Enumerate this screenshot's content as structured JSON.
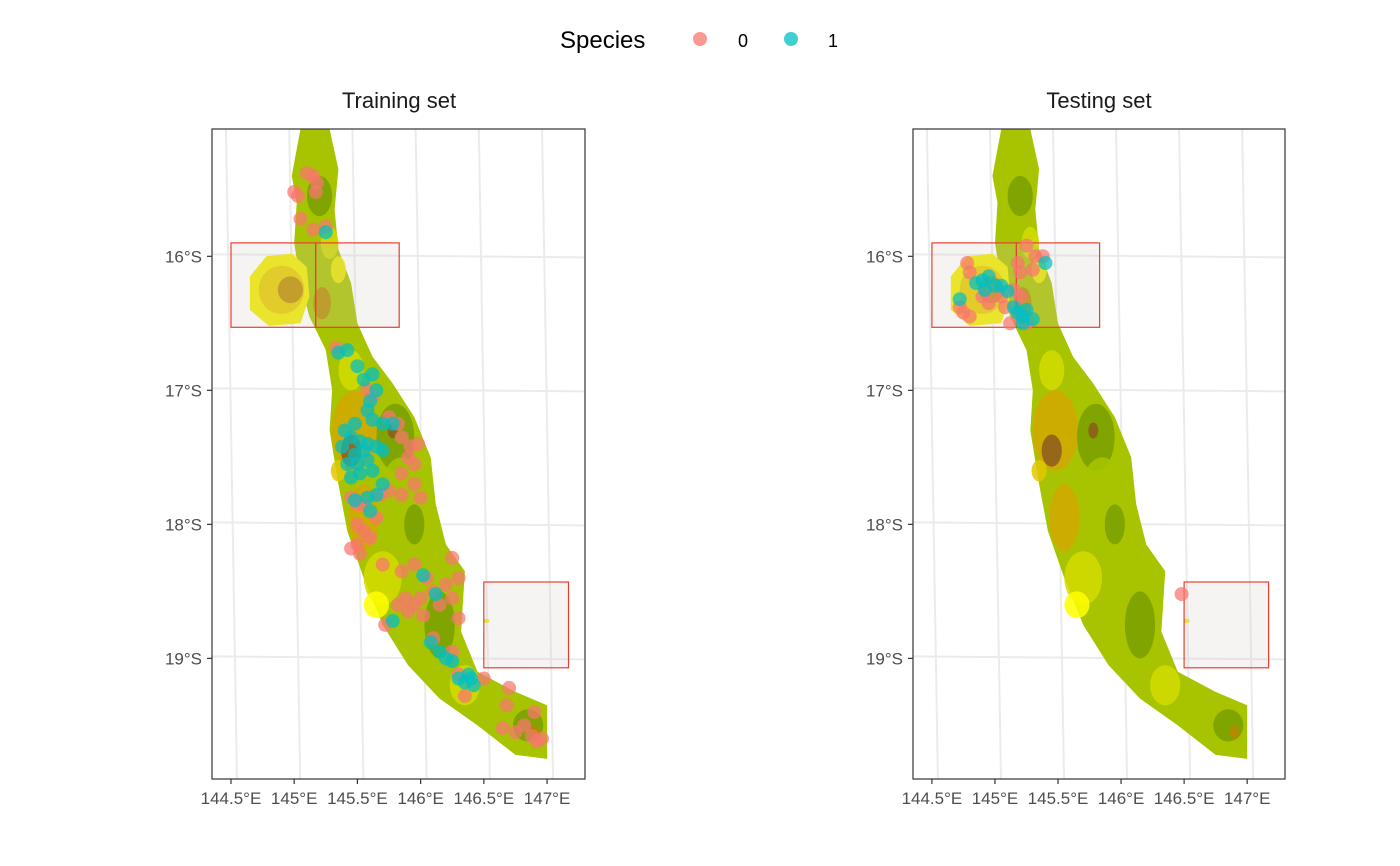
{
  "legend": {
    "title": "Species",
    "placement": "top-center",
    "items": [
      {
        "label": "0",
        "color": "#F8766D"
      },
      {
        "label": "1",
        "color": "#00BFC4"
      }
    ]
  },
  "terrain_colors": [
    "#7aa000",
    "#a8c400",
    "#d4dc00",
    "#f0ec00",
    "#ffff00",
    "#e2c800",
    "#d4a800",
    "#b88800",
    "#8c5a20"
  ],
  "chart_data": [
    {
      "type": "scatter",
      "title": "Training set",
      "x_ticks": [
        "144.5°E",
        "145°E",
        "145.5°E",
        "146°E",
        "146.5°E",
        "147°E"
      ],
      "x_tick_values": [
        144.5,
        145,
        145.5,
        146,
        146.5,
        147
      ],
      "y_ticks": [
        "16°S",
        "17°S",
        "18°S",
        "19°S"
      ],
      "y_tick_values": [
        -16,
        -17,
        -18,
        -19
      ],
      "xlim": [
        144.35,
        147.3
      ],
      "ylim": [
        -19.9,
        -15.05
      ],
      "grid": true,
      "blocks": [
        {
          "lon": [
            144.5,
            145.17
          ],
          "lat": [
            -16.53,
            -15.9
          ]
        },
        {
          "lon": [
            145.17,
            145.83
          ],
          "lat": [
            -16.53,
            -15.9
          ]
        },
        {
          "lon": [
            146.5,
            147.17
          ],
          "lat": [
            -19.07,
            -18.43
          ]
        }
      ],
      "series": [
        {
          "name": "0",
          "points": [
            [
              145.0,
              -15.52
            ],
            [
              145.03,
              -15.55
            ],
            [
              145.1,
              -15.38
            ],
            [
              145.15,
              -15.4
            ],
            [
              145.18,
              -15.45
            ],
            [
              145.17,
              -15.52
            ],
            [
              145.05,
              -15.72
            ],
            [
              145.15,
              -15.8
            ],
            [
              145.25,
              -15.78
            ],
            [
              145.33,
              -16.68
            ],
            [
              145.58,
              -17.0
            ],
            [
              145.62,
              -17.05
            ],
            [
              145.75,
              -17.2
            ],
            [
              145.82,
              -17.25
            ],
            [
              145.85,
              -17.35
            ],
            [
              145.92,
              -17.42
            ],
            [
              145.98,
              -17.4
            ],
            [
              145.9,
              -17.5
            ],
            [
              145.95,
              -17.55
            ],
            [
              145.85,
              -17.62
            ],
            [
              145.95,
              -17.7
            ],
            [
              146.0,
              -17.8
            ],
            [
              145.85,
              -17.78
            ],
            [
              145.75,
              -17.75
            ],
            [
              145.68,
              -17.78
            ],
            [
              145.5,
              -17.85
            ],
            [
              145.5,
              -18.0
            ],
            [
              145.55,
              -18.05
            ],
            [
              145.6,
              -18.1
            ],
            [
              145.5,
              -18.15
            ],
            [
              145.45,
              -18.18
            ],
            [
              145.52,
              -18.22
            ],
            [
              145.7,
              -18.3
            ],
            [
              145.85,
              -18.35
            ],
            [
              145.95,
              -18.3
            ],
            [
              146.05,
              -18.4
            ],
            [
              146.1,
              -18.5
            ],
            [
              146.0,
              -18.55
            ],
            [
              145.95,
              -18.6
            ],
            [
              145.88,
              -18.55
            ],
            [
              145.82,
              -18.6
            ],
            [
              145.9,
              -18.65
            ],
            [
              146.02,
              -18.68
            ],
            [
              146.15,
              -18.6
            ],
            [
              146.2,
              -18.45
            ],
            [
              146.25,
              -18.25
            ],
            [
              146.3,
              -18.4
            ],
            [
              146.25,
              -18.55
            ],
            [
              146.3,
              -18.7
            ],
            [
              145.72,
              -18.75
            ],
            [
              146.1,
              -18.85
            ],
            [
              146.25,
              -18.95
            ],
            [
              146.3,
              -19.12
            ],
            [
              146.35,
              -19.28
            ],
            [
              146.5,
              -19.15
            ],
            [
              146.7,
              -19.22
            ],
            [
              146.68,
              -19.35
            ],
            [
              146.65,
              -19.52
            ],
            [
              146.75,
              -19.55
            ],
            [
              146.82,
              -19.5
            ],
            [
              146.88,
              -19.58
            ],
            [
              146.92,
              -19.62
            ],
            [
              146.96,
              -19.6
            ],
            [
              146.9,
              -19.4
            ],
            [
              145.55,
              -17.85
            ],
            [
              145.65,
              -17.95
            ],
            [
              145.45,
              -17.8
            ]
          ]
        },
        {
          "name": "1",
          "points": [
            [
              145.25,
              -15.82
            ],
            [
              145.42,
              -16.7
            ],
            [
              145.35,
              -16.72
            ],
            [
              145.5,
              -16.82
            ],
            [
              145.55,
              -16.92
            ],
            [
              145.62,
              -16.88
            ],
            [
              145.65,
              -17.0
            ],
            [
              145.6,
              -17.08
            ],
            [
              145.58,
              -17.15
            ],
            [
              145.62,
              -17.22
            ],
            [
              145.7,
              -17.25
            ],
            [
              145.78,
              -17.25
            ],
            [
              145.48,
              -17.25
            ],
            [
              145.4,
              -17.3
            ],
            [
              145.45,
              -17.35
            ],
            [
              145.52,
              -17.38
            ],
            [
              145.58,
              -17.4
            ],
            [
              145.65,
              -17.42
            ],
            [
              145.7,
              -17.45
            ],
            [
              145.55,
              -17.45
            ],
            [
              145.48,
              -17.48
            ],
            [
              145.42,
              -17.55
            ],
            [
              145.5,
              -17.55
            ],
            [
              145.58,
              -17.52
            ],
            [
              145.62,
              -17.6
            ],
            [
              145.52,
              -17.62
            ],
            [
              145.45,
              -17.65
            ],
            [
              145.7,
              -17.7
            ],
            [
              145.65,
              -17.78
            ],
            [
              145.58,
              -17.8
            ],
            [
              145.6,
              -17.9
            ],
            [
              145.48,
              -17.82
            ],
            [
              145.38,
              -17.42
            ],
            [
              146.02,
              -18.38
            ],
            [
              146.12,
              -18.52
            ],
            [
              145.78,
              -18.72
            ],
            [
              146.08,
              -18.88
            ],
            [
              146.15,
              -18.95
            ],
            [
              146.2,
              -19.0
            ],
            [
              146.25,
              -19.02
            ],
            [
              146.3,
              -19.15
            ],
            [
              146.35,
              -19.18
            ],
            [
              146.42,
              -19.2
            ],
            [
              146.38,
              -19.12
            ],
            [
              146.4,
              -19.15
            ]
          ]
        }
      ]
    },
    {
      "type": "scatter",
      "title": "Testing set",
      "x_ticks": [
        "144.5°E",
        "145°E",
        "145.5°E",
        "146°E",
        "146.5°E",
        "147°E"
      ],
      "x_tick_values": [
        144.5,
        145,
        145.5,
        146,
        146.5,
        147
      ],
      "y_ticks": [
        "16°S",
        "17°S",
        "18°S",
        "19°S"
      ],
      "y_tick_values": [
        -16,
        -17,
        -18,
        -19
      ],
      "xlim": [
        144.35,
        147.3
      ],
      "ylim": [
        -19.9,
        -15.05
      ],
      "grid": true,
      "blocks": [
        {
          "lon": [
            144.5,
            145.17
          ],
          "lat": [
            -16.53,
            -15.9
          ]
        },
        {
          "lon": [
            145.17,
            145.83
          ],
          "lat": [
            -16.53,
            -15.9
          ]
        },
        {
          "lon": [
            146.5,
            147.17
          ],
          "lat": [
            -19.07,
            -18.43
          ]
        }
      ],
      "series": [
        {
          "name": "0",
          "points": [
            [
              144.78,
              -16.05
            ],
            [
              144.8,
              -16.12
            ],
            [
              144.75,
              -16.42
            ],
            [
              144.8,
              -16.45
            ],
            [
              144.72,
              -16.38
            ],
            [
              144.9,
              -16.3
            ],
            [
              144.95,
              -16.35
            ],
            [
              145.05,
              -16.3
            ],
            [
              145.08,
              -16.38
            ],
            [
              145.18,
              -16.05
            ],
            [
              145.2,
              -16.12
            ],
            [
              145.25,
              -15.92
            ],
            [
              145.3,
              -16.1
            ],
            [
              145.32,
              -16.0
            ],
            [
              145.38,
              -16.0
            ],
            [
              145.12,
              -16.5
            ],
            [
              145.2,
              -16.45
            ],
            [
              145.25,
              -16.5
            ],
            [
              145.15,
              -16.25
            ],
            [
              145.2,
              -16.3
            ],
            [
              146.48,
              -18.52
            ]
          ]
        },
        {
          "name": "1",
          "points": [
            [
              144.72,
              -16.32
            ],
            [
              144.85,
              -16.2
            ],
            [
              144.9,
              -16.18
            ],
            [
              144.95,
              -16.15
            ],
            [
              145.0,
              -16.22
            ],
            [
              144.92,
              -16.25
            ],
            [
              145.05,
              -16.22
            ],
            [
              145.1,
              -16.26
            ],
            [
              145.15,
              -16.38
            ],
            [
              145.18,
              -16.42
            ],
            [
              145.22,
              -16.45
            ],
            [
              145.25,
              -16.4
            ],
            [
              145.3,
              -16.47
            ],
            [
              145.22,
              -16.5
            ],
            [
              145.4,
              -16.05
            ]
          ]
        }
      ]
    }
  ]
}
